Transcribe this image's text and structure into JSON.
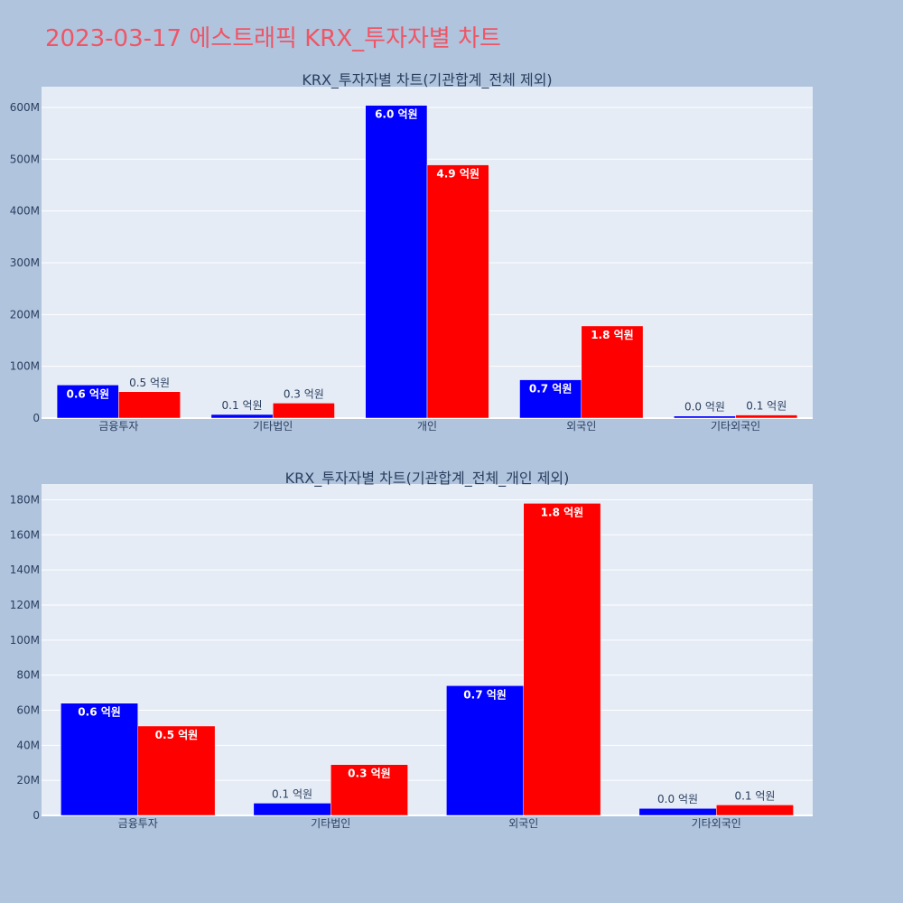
{
  "title": "2023-03-17 에스트래픽 KRX_투자자별 차트",
  "colors": {
    "background": "#b0c4de",
    "plot_bg": "#e5ecf6",
    "grid": "#ffffff",
    "title": "#ef5565",
    "series": [
      "#0000ff",
      "#ff0000"
    ]
  },
  "chart_data": [
    {
      "type": "bar",
      "title": "KRX_투자자별 차트(기관합계_전체 제외)",
      "categories": [
        "금융투자",
        "기타법인",
        "개인",
        "외국인",
        "기타외국인"
      ],
      "ylim": [
        0,
        640000000
      ],
      "yticks": [
        0,
        100000000,
        200000000,
        300000000,
        400000000,
        500000000,
        600000000
      ],
      "ytick_labels": [
        "0",
        "100M",
        "200M",
        "300M",
        "400M",
        "500M",
        "600M"
      ],
      "grid": true,
      "series": [
        {
          "values": [
            64000000,
            7000000,
            604000000,
            74000000,
            4000000
          ],
          "labels": [
            "0.6 억원",
            "0.1 억원",
            "6.0 억원",
            "0.7 억원",
            "0.0 억원"
          ]
        },
        {
          "values": [
            51000000,
            29000000,
            489000000,
            178000000,
            6000000
          ],
          "labels": [
            "0.5 억원",
            "0.3 억원",
            "4.9 억원",
            "1.8 억원",
            "0.1 억원"
          ]
        }
      ]
    },
    {
      "type": "bar",
      "title": "KRX_투자자별 차트(기관합계_전체_개인 제외)",
      "categories": [
        "금융투자",
        "기타법인",
        "외국인",
        "기타외국인"
      ],
      "ylim": [
        0,
        189000000
      ],
      "yticks": [
        0,
        20000000,
        40000000,
        60000000,
        80000000,
        100000000,
        120000000,
        140000000,
        160000000,
        180000000
      ],
      "ytick_labels": [
        "0",
        "20M",
        "40M",
        "60M",
        "80M",
        "100M",
        "120M",
        "140M",
        "160M",
        "180M"
      ],
      "grid": true,
      "series": [
        {
          "values": [
            64000000,
            7000000,
            74000000,
            4000000
          ],
          "labels": [
            "0.6 억원",
            "0.1 억원",
            "0.7 억원",
            "0.0 억원"
          ]
        },
        {
          "values": [
            51000000,
            29000000,
            178000000,
            6000000
          ],
          "labels": [
            "0.5 억원",
            "0.3 억원",
            "1.8 억원",
            "0.1 억원"
          ]
        }
      ]
    }
  ]
}
